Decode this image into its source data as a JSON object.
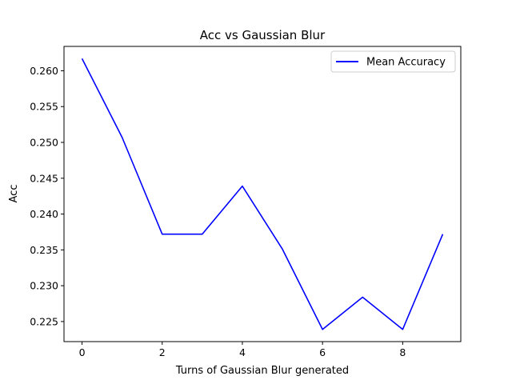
{
  "chart_data": {
    "type": "line",
    "title": "Acc vs Gaussian Blur",
    "xlabel": "Turns of Gaussian Blur generated",
    "ylabel": "Acc",
    "x": [
      0,
      1,
      2,
      3,
      4,
      5,
      6,
      7,
      8,
      9
    ],
    "series": [
      {
        "name": "Mean Accuracy",
        "color": "#0000ff",
        "values": [
          0.2617,
          0.2507,
          0.2372,
          0.2372,
          0.2439,
          0.2351,
          0.2239,
          0.2284,
          0.2239,
          0.2372
        ]
      }
    ],
    "xlim": [
      -0.45,
      9.45
    ],
    "ylim": [
      0.2222,
      0.2634
    ],
    "xticks": [
      0,
      2,
      4,
      6,
      8
    ],
    "xtick_labels": [
      "0",
      "2",
      "4",
      "6",
      "8"
    ],
    "yticks": [
      0.225,
      0.23,
      0.235,
      0.24,
      0.245,
      0.25,
      0.255,
      0.26
    ],
    "ytick_labels": [
      "0.225",
      "0.230",
      "0.235",
      "0.240",
      "0.245",
      "0.250",
      "0.255",
      "0.260"
    ],
    "grid": false,
    "legend_position": "top-right"
  }
}
